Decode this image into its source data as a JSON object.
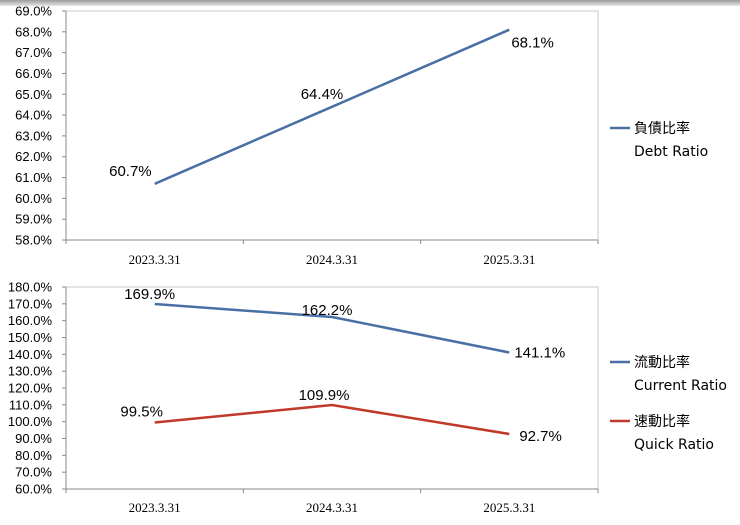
{
  "chart_data": [
    {
      "type": "line",
      "categories": [
        "2023.3.31",
        "2024.3.31",
        "2025.3.31"
      ],
      "ylim": [
        58.0,
        69.0
      ],
      "ytick_step": 1.0,
      "ytick_labels": [
        "58.0%",
        "59.0%",
        "60.0%",
        "61.0%",
        "62.0%",
        "63.0%",
        "64.0%",
        "65.0%",
        "66.0%",
        "67.0%",
        "68.0%",
        "69.0%"
      ],
      "series": [
        {
          "name_zh": "負債比率",
          "name_en": "Debt Ratio",
          "color": "#4a6fa5",
          "values": [
            60.7,
            64.4,
            68.1
          ],
          "labels": [
            "60.7%",
            "64.4%",
            "68.1%"
          ]
        }
      ],
      "legend": "right",
      "grid": false
    },
    {
      "type": "line",
      "categories": [
        "2023.3.31",
        "2024.3.31",
        "2025.3.31"
      ],
      "ylim": [
        60.0,
        180.0
      ],
      "ytick_step": 10.0,
      "ytick_labels": [
        "60.0%",
        "70.0%",
        "80.0%",
        "90.0%",
        "100.0%",
        "110.0%",
        "120.0%",
        "130.0%",
        "140.0%",
        "150.0%",
        "160.0%",
        "170.0%",
        "180.0%"
      ],
      "series": [
        {
          "name_zh": "流動比率",
          "name_en": "Current Ratio",
          "color": "#4a6fa5",
          "values": [
            169.9,
            162.2,
            141.1
          ],
          "labels": [
            "169.9%",
            "162.2%",
            "141.1%"
          ]
        },
        {
          "name_zh": "速動比率",
          "name_en": "Quick Ratio",
          "color": "#c0392b",
          "values": [
            99.5,
            109.9,
            92.7
          ],
          "labels": [
            "99.5%",
            "109.9%",
            "92.7%"
          ]
        }
      ],
      "legend": "right",
      "grid": false
    }
  ]
}
